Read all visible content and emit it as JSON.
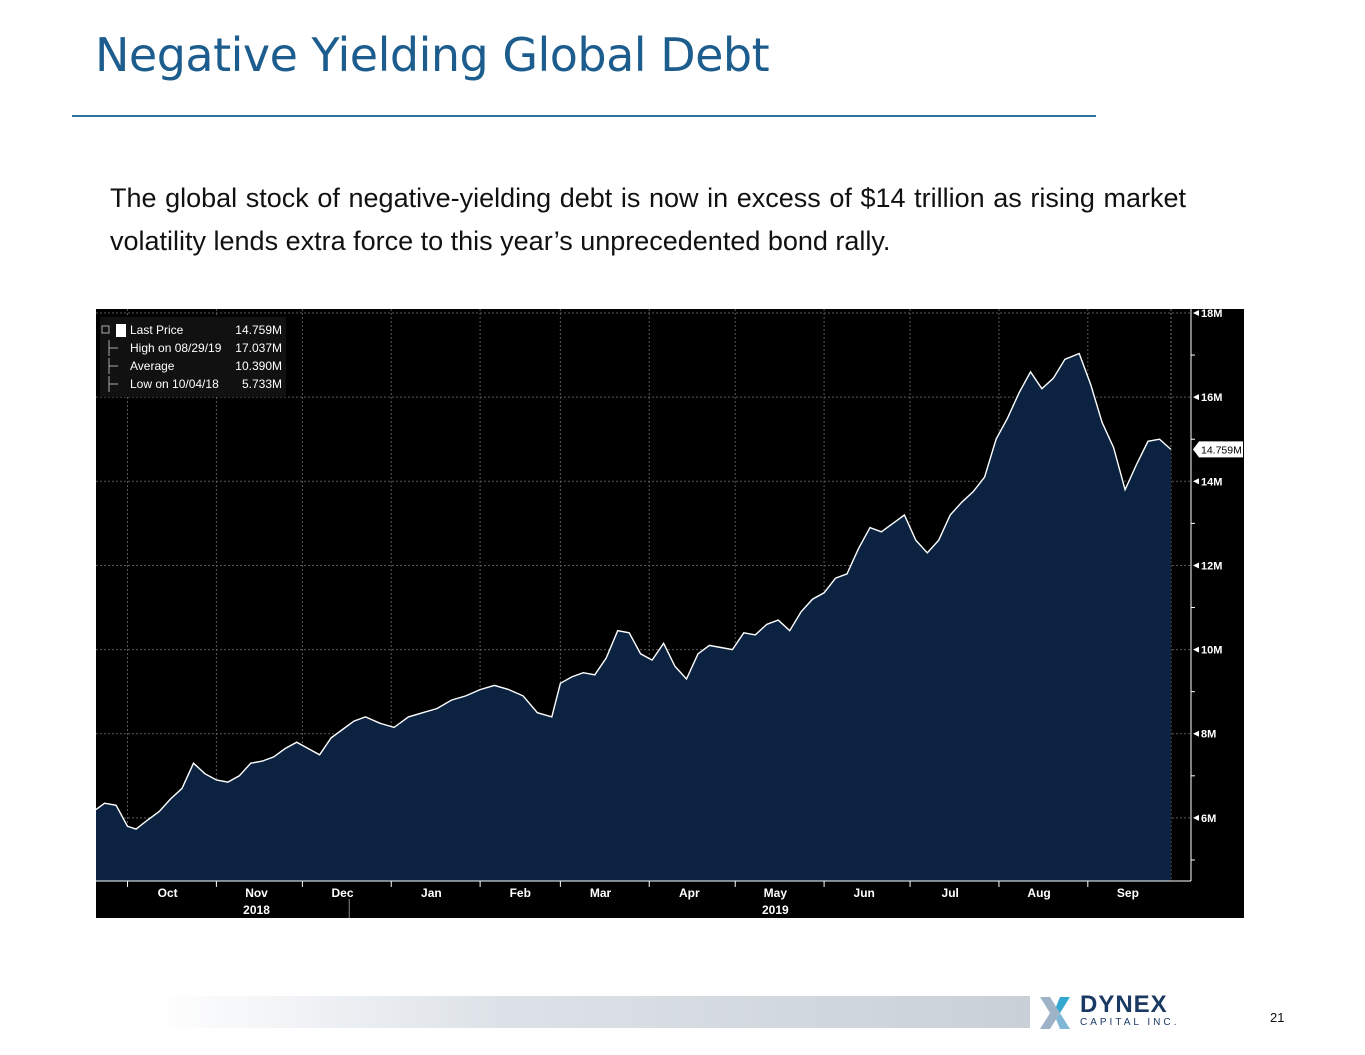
{
  "slide": {
    "title": "Negative Yielding Global Debt",
    "body": "The global stock of negative-yielding debt is now in excess of $14 trillion as rising market volatility lends extra force to this year’s unprecedented bond rally.",
    "page_number": "21"
  },
  "logo": {
    "name": "DYNEX",
    "subtitle": "CAPITAL INC."
  },
  "colors": {
    "title": "#1c5d8e",
    "chart_bg": "#000000",
    "area_fill": "#0b2340",
    "line": "#ffffff"
  },
  "chart_data": {
    "type": "area",
    "title": "",
    "xlabel": "",
    "ylabel": "",
    "ylim": [
      4500000,
      18000000
    ],
    "grid": true,
    "legend_position": "top-left",
    "y_ticks": [
      "18M",
      "16M",
      "14M",
      "12M",
      "10M",
      "8M",
      "6M"
    ],
    "y_tick_values": [
      18000000,
      16000000,
      14000000,
      12000000,
      10000000,
      8000000,
      6000000
    ],
    "x_ticks": [
      "Oct",
      "Nov",
      "Dec",
      "Jan",
      "Feb",
      "Mar",
      "Apr",
      "May",
      "Jun",
      "Jul",
      "Aug",
      "Sep"
    ],
    "x_tick_dates": [
      "2018-10-01",
      "2018-11-01",
      "2018-12-01",
      "2019-01-01",
      "2019-02-01",
      "2019-03-01",
      "2019-04-01",
      "2019-05-01",
      "2019-06-01",
      "2019-07-01",
      "2019-08-01",
      "2019-09-01"
    ],
    "year_labels": [
      {
        "label": "2018",
        "date": "2018-11-01"
      },
      {
        "label": "2019",
        "date": "2019-05-01"
      }
    ],
    "last_value_label": "14.759M",
    "legend": [
      {
        "label": "Last Price",
        "value": "14.759M"
      },
      {
        "label": "High on 08/29/19",
        "value": "17.037M"
      },
      {
        "label": "Average",
        "value": "10.390M"
      },
      {
        "label": "Low on 10/04/18",
        "value": "5.733M"
      }
    ],
    "series": [
      {
        "x": [
          "2018-09-20",
          "2018-09-23",
          "2018-09-27",
          "2018-10-01",
          "2018-10-04",
          "2018-10-08",
          "2018-10-12",
          "2018-10-16",
          "2018-10-20",
          "2018-10-24",
          "2018-10-28",
          "2018-11-01",
          "2018-11-05",
          "2018-11-09",
          "2018-11-13",
          "2018-11-17",
          "2018-11-21",
          "2018-11-25",
          "2018-11-29",
          "2018-12-03",
          "2018-12-07",
          "2018-12-11",
          "2018-12-15",
          "2018-12-19",
          "2018-12-23",
          "2018-12-28",
          "2019-01-02",
          "2019-01-07",
          "2019-01-12",
          "2019-01-17",
          "2019-01-22",
          "2019-01-27",
          "2019-02-01",
          "2019-02-06",
          "2019-02-11",
          "2019-02-16",
          "2019-02-21",
          "2019-02-26",
          "2019-03-01",
          "2019-03-05",
          "2019-03-09",
          "2019-03-13",
          "2019-03-17",
          "2019-03-21",
          "2019-03-25",
          "2019-03-29",
          "2019-04-02",
          "2019-04-06",
          "2019-04-10",
          "2019-04-14",
          "2019-04-18",
          "2019-04-22",
          "2019-04-26",
          "2019-04-30",
          "2019-05-04",
          "2019-05-08",
          "2019-05-12",
          "2019-05-16",
          "2019-05-20",
          "2019-05-24",
          "2019-05-28",
          "2019-06-01",
          "2019-06-05",
          "2019-06-09",
          "2019-06-13",
          "2019-06-17",
          "2019-06-21",
          "2019-06-25",
          "2019-06-29",
          "2019-07-03",
          "2019-07-07",
          "2019-07-11",
          "2019-07-15",
          "2019-07-19",
          "2019-07-23",
          "2019-07-27",
          "2019-07-31",
          "2019-08-04",
          "2019-08-08",
          "2019-08-12",
          "2019-08-16",
          "2019-08-20",
          "2019-08-24",
          "2019-08-29",
          "2019-09-02",
          "2019-09-06",
          "2019-09-10",
          "2019-09-14",
          "2019-09-18",
          "2019-09-22",
          "2019-09-26",
          "2019-09-30"
        ],
        "values": [
          6200000,
          6350000,
          6300000,
          5800000,
          5733000,
          5950000,
          6150000,
          6450000,
          6700000,
          7300000,
          7050000,
          6900000,
          6850000,
          7000000,
          7300000,
          7350000,
          7450000,
          7650000,
          7800000,
          7650000,
          7500000,
          7900000,
          8100000,
          8300000,
          8400000,
          8250000,
          8150000,
          8400000,
          8500000,
          8600000,
          8800000,
          8900000,
          9050000,
          9150000,
          9050000,
          8900000,
          8500000,
          8400000,
          9200000,
          9350000,
          9450000,
          9400000,
          9800000,
          10450000,
          10400000,
          9900000,
          9750000,
          10150000,
          9600000,
          9300000,
          9900000,
          10100000,
          10050000,
          10000000,
          10400000,
          10350000,
          10600000,
          10700000,
          10450000,
          10900000,
          11200000,
          11350000,
          11700000,
          11800000,
          12400000,
          12900000,
          12800000,
          13000000,
          13200000,
          12600000,
          12300000,
          12600000,
          13200000,
          13500000,
          13750000,
          14100000,
          15000000,
          15500000,
          16100000,
          16600000,
          16200000,
          16450000,
          16900000,
          17037000,
          16300000,
          15400000,
          14800000,
          13800000,
          14400000,
          14950000,
          15000000,
          14759000
        ]
      }
    ]
  }
}
